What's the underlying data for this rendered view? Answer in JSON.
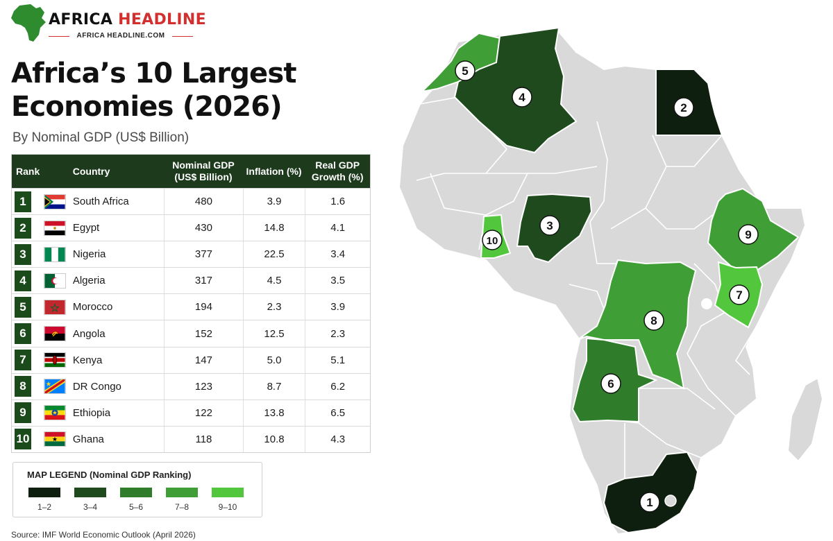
{
  "header": {
    "brand_part1": "AFRICA ",
    "brand_part2": "HEADLINE",
    "site": "AFRICA HEADLINE.COM",
    "title": "Africa’s 10 Largest Economies (2026)",
    "subtitle": "By Nominal GDP (US$ Billion)"
  },
  "table": {
    "headers": {
      "rank": "Rank",
      "country": "Country",
      "gdp": "Nominal GDP (US$ Billion)",
      "inflation": "Inflation (%)",
      "growth": "Real GDP Growth (%)"
    },
    "rows": [
      {
        "rank": "1",
        "country": "South Africa",
        "gdp": "480",
        "inflation": "3.9",
        "growth": "1.6"
      },
      {
        "rank": "2",
        "country": "Egypt",
        "gdp": "430",
        "inflation": "14.8",
        "growth": "4.1"
      },
      {
        "rank": "3",
        "country": "Nigeria",
        "gdp": "377",
        "inflation": "22.5",
        "growth": "3.4"
      },
      {
        "rank": "4",
        "country": "Algeria",
        "gdp": "317",
        "inflation": "4.5",
        "growth": "3.5"
      },
      {
        "rank": "5",
        "country": "Morocco",
        "gdp": "194",
        "inflation": "2.3",
        "growth": "3.9"
      },
      {
        "rank": "6",
        "country": "Angola",
        "gdp": "152",
        "inflation": "12.5",
        "growth": "2.3"
      },
      {
        "rank": "7",
        "country": "Kenya",
        "gdp": "147",
        "inflation": "5.0",
        "growth": "5.1"
      },
      {
        "rank": "8",
        "country": "DR Congo",
        "gdp": "123",
        "inflation": "8.7",
        "growth": "6.2"
      },
      {
        "rank": "9",
        "country": "Ethiopia",
        "gdp": "122",
        "inflation": "13.8",
        "growth": "6.5"
      },
      {
        "rank": "10",
        "country": "Ghana",
        "gdp": "118",
        "inflation": "10.8",
        "growth": "4.3"
      }
    ]
  },
  "legend": {
    "title": "MAP LEGEND (Nominal GDP Ranking)",
    "items": [
      {
        "label": "1–2",
        "color": "#0f1f0f"
      },
      {
        "label": "3–4",
        "color": "#1e4a1e"
      },
      {
        "label": "5–6",
        "color": "#2f7d2a"
      },
      {
        "label": "7–8",
        "color": "#3f9e35"
      },
      {
        "label": "9–10",
        "color": "#52c73d"
      }
    ]
  },
  "map": {
    "base_color": "#d9d9d9",
    "markers": [
      "1",
      "2",
      "3",
      "4",
      "5",
      "6",
      "7",
      "8",
      "9",
      "10"
    ]
  },
  "source": "Source: IMF World Economic Outlook (April 2026)"
}
